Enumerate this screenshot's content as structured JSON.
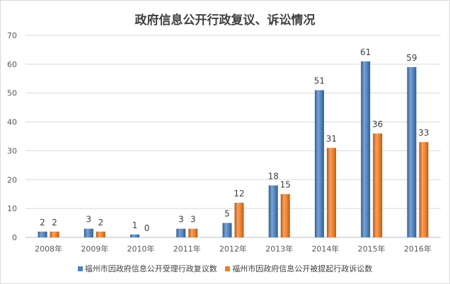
{
  "chart_data": {
    "type": "bar",
    "title": "政府信息公开行政复议、诉讼情况",
    "categories": [
      "2008年",
      "2009年",
      "2010年",
      "2011年",
      "2012年",
      "2013年",
      "2014年",
      "2015年",
      "2016年"
    ],
    "series": [
      {
        "name": "福州市因政府信息公开受理行政复议数",
        "values": [
          2,
          3,
          1,
          3,
          5,
          18,
          51,
          61,
          59
        ],
        "color": "#4f81bd",
        "color_dark": "#2f5d8f",
        "color_light": "#7aa3d4"
      },
      {
        "name": "福州市因政府信息公开被提起行政诉讼数",
        "values": [
          2,
          2,
          0,
          3,
          12,
          15,
          31,
          36,
          33
        ],
        "color": "#f07f25",
        "color_dark": "#b55a14",
        "color_light": "#f4a060"
      }
    ],
    "ylim": [
      0,
      70
    ],
    "yticks": [
      0,
      10,
      20,
      30,
      40,
      50,
      60,
      70
    ],
    "grid": true,
    "data_labels": true,
    "legend_position": "bottom",
    "xlabel": "",
    "ylabel": ""
  }
}
